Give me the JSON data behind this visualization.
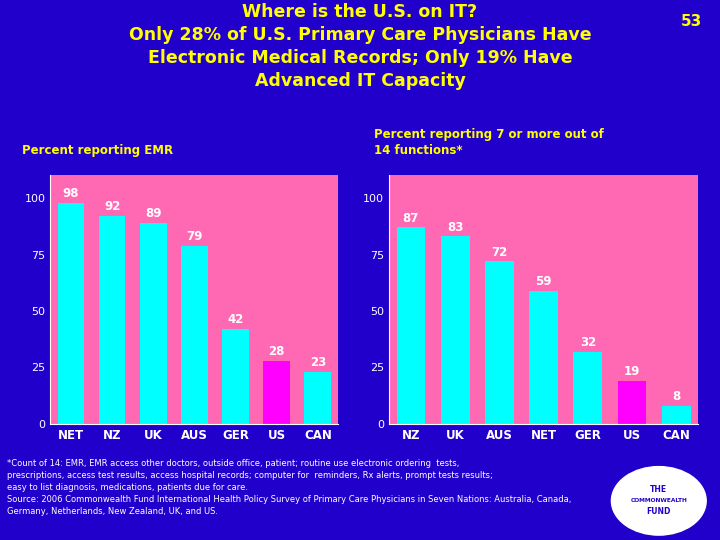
{
  "title_line1": "Where is the U.S. on IT?",
  "title_line2": "Only 28% of U.S. Primary Care Physicians Have",
  "title_line3": "Electronic Medical Records; Only 19% Have",
  "title_line4": "Advanced IT Capacity",
  "slide_number": "53",
  "background_color": "#2200CC",
  "chart_bg_color": "#FF69B4",
  "title_color": "#FFFF00",
  "label1": "Percent reporting EMR",
  "label2": "Percent reporting 7 or more out of\n14 functions*",
  "label_color": "#FFFF00",
  "emr_categories": [
    "NET",
    "NZ",
    "UK",
    "AUS",
    "GER",
    "US",
    "CAN"
  ],
  "emr_values": [
    98,
    92,
    89,
    79,
    42,
    28,
    23
  ],
  "emr_colors": [
    "#00FFFF",
    "#00FFFF",
    "#00FFFF",
    "#00FFFF",
    "#00FFFF",
    "#FF00FF",
    "#00FFFF"
  ],
  "func_categories": [
    "NZ",
    "UK",
    "AUS",
    "NET",
    "GER",
    "US",
    "CAN"
  ],
  "func_values": [
    87,
    83,
    72,
    59,
    32,
    19,
    8
  ],
  "func_colors": [
    "#00FFFF",
    "#00FFFF",
    "#00FFFF",
    "#00FFFF",
    "#00FFFF",
    "#FF00FF",
    "#00FFFF"
  ],
  "bar_value_color": "#FFFFFF",
  "tick_color": "#FFFFFF",
  "footnote1": "*Count of 14: EMR, EMR access other doctors, outside office, patient; routine use electronic ordering  tests,",
  "footnote2": "prescriptions, access test results, access hospital records; computer for  reminders, Rx alerts, prompt tests results;",
  "footnote3": "easy to list diagnosis, medications, patients due for care.",
  "source": "Source: 2006 Commonwealth Fund International Health Policy Survey of Primary Care Physicians in Seven Nations: Australia, Canada,",
  "source2": "Germany, Netherlands, New Zealand, UK, and US.",
  "footnote_color": "#FFFFFF"
}
